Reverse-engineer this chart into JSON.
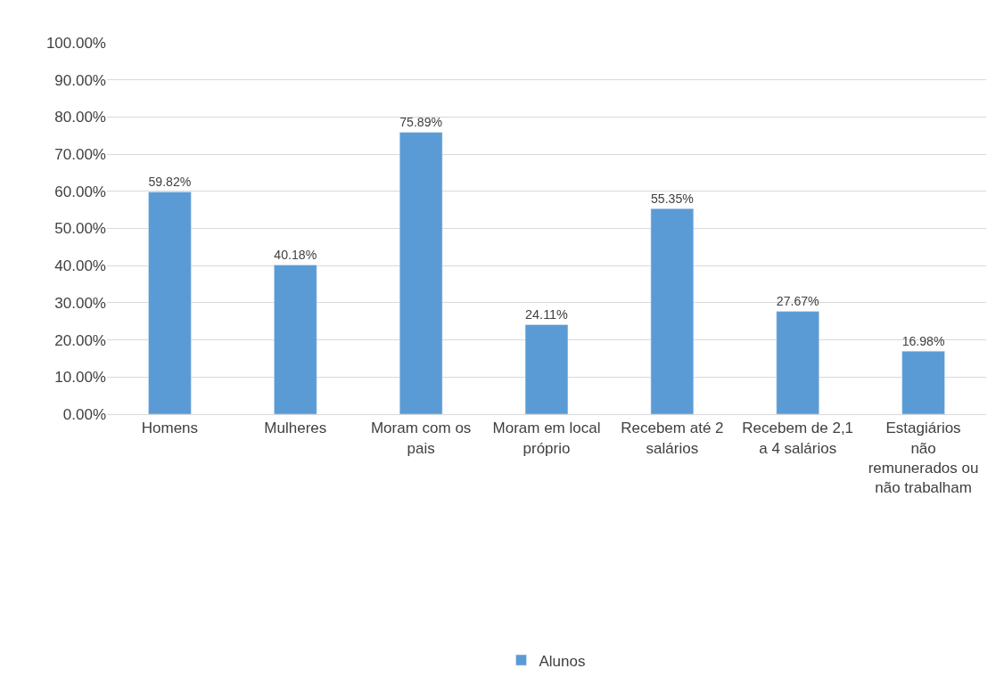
{
  "chart_data": {
    "type": "bar",
    "categories": [
      "Homens",
      "Mulheres",
      "Moram com os pais",
      "Moram em local próprio",
      "Recebem até 2 salários",
      "Recebem de 2,1 a 4 salários",
      "Estagiários não remunerados ou não trabalham"
    ],
    "series": [
      {
        "name": "Alunos",
        "color": "#5b9bd5",
        "values": [
          59.82,
          40.18,
          75.89,
          24.11,
          55.35,
          27.67,
          16.98
        ],
        "value_labels": [
          "59.82%",
          "40.18%",
          "75.89%",
          "24.11%",
          "55.35%",
          "27.67%",
          "16.98%"
        ]
      }
    ],
    "ylim": [
      0,
      100
    ],
    "yticks": [
      {
        "value": 0,
        "label": "0.00%"
      },
      {
        "value": 10,
        "label": "10.00%"
      },
      {
        "value": 20,
        "label": "20.00%"
      },
      {
        "value": 30,
        "label": "30.00%"
      },
      {
        "value": 40,
        "label": "40.00%"
      },
      {
        "value": 50,
        "label": "50.00%"
      },
      {
        "value": 60,
        "label": "60.00%"
      },
      {
        "value": 70,
        "label": "70.00%"
      },
      {
        "value": 80,
        "label": "80.00%"
      },
      {
        "value": 90,
        "label": "90.00%"
      },
      {
        "value": 100,
        "label": "100.00%"
      }
    ],
    "grid": "y",
    "legend": "bottom"
  }
}
